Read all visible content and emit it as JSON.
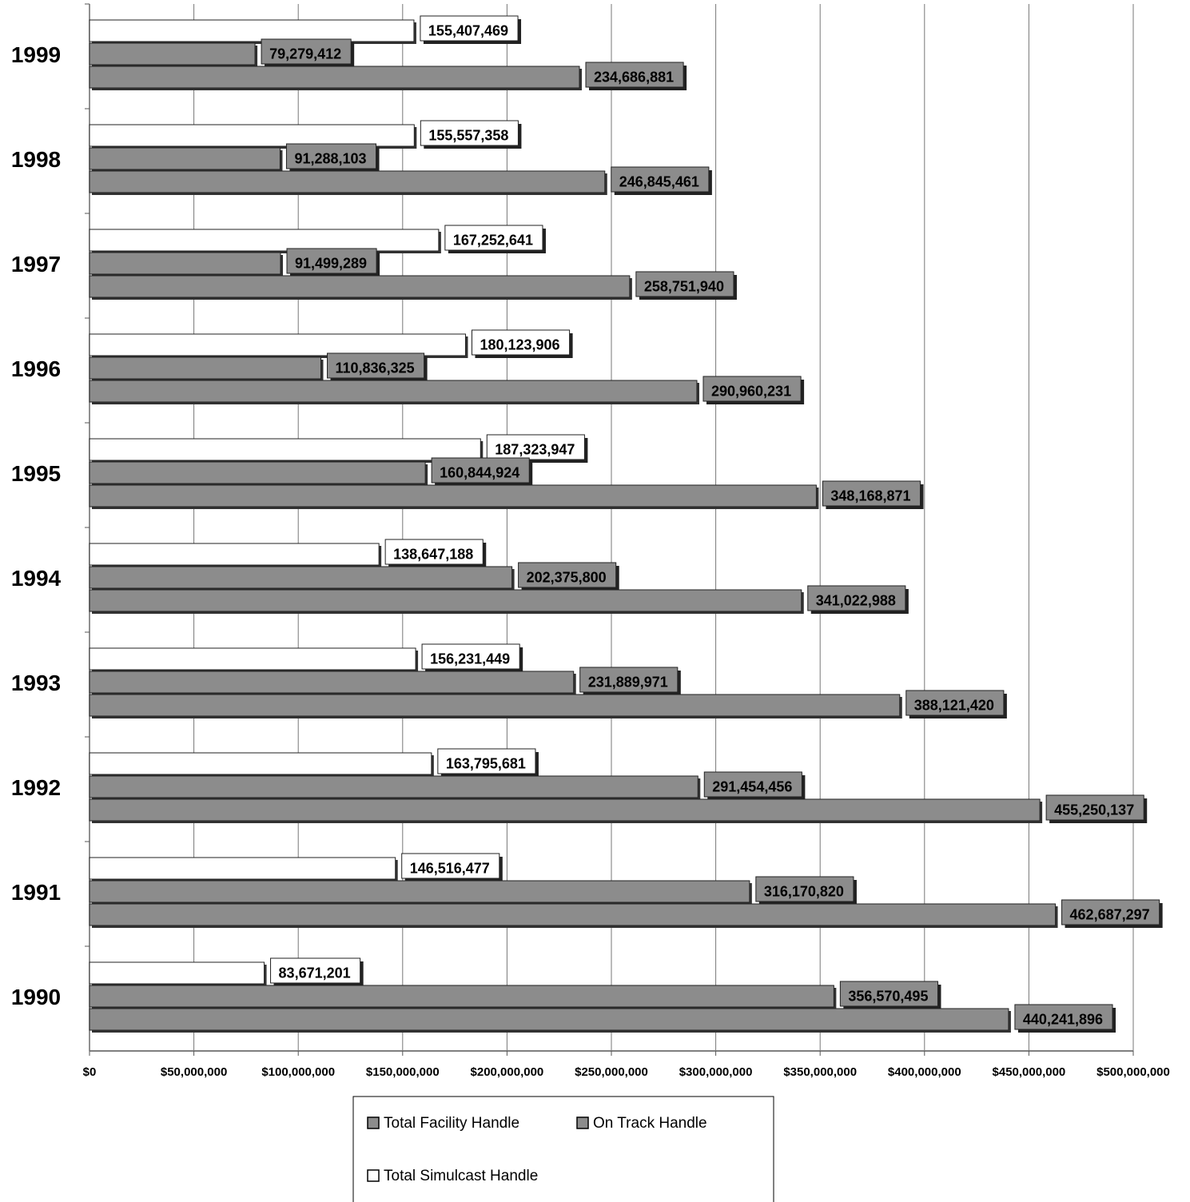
{
  "chart_data": {
    "type": "hbar",
    "categories": [
      "1999",
      "1998",
      "1997",
      "1996",
      "1995",
      "1994",
      "1993",
      "1992",
      "1991",
      "1990"
    ],
    "series": [
      {
        "name": "Total Facility Handle",
        "color": "#8c8c8c",
        "values": [
          234686881,
          246845461,
          258751940,
          290960231,
          348168871,
          341022988,
          388121420,
          455250137,
          462687297,
          440241896
        ],
        "value_labels": [
          "234,686,881",
          "246,845,461",
          "258,751,940",
          "290,960,231",
          "348,168,871",
          "341,022,988",
          "388,121,420",
          "455,250,137",
          "462,687,297",
          "440,241,896"
        ]
      },
      {
        "name": "On Track Handle",
        "color": "#8c8c8c",
        "values": [
          79279412,
          91288103,
          91499289,
          110836325,
          160844924,
          202375800,
          231889971,
          291454456,
          316170820,
          356570495
        ],
        "value_labels": [
          "79,279,412",
          "91,288,103",
          "91,499,289",
          "110,836,325",
          "160,844,924",
          "202,375,800",
          "231,889,971",
          "291,454,456",
          "316,170,820",
          "356,570,495"
        ]
      },
      {
        "name": "Total Simulcast Handle",
        "color": "#ffffff",
        "values": [
          155407469,
          155557358,
          167252641,
          180123906,
          187323947,
          138647188,
          156231449,
          163795681,
          146516477,
          83671201
        ],
        "value_labels": [
          "155,407,469",
          "155,557,358",
          "167,252,641",
          "180,123,906",
          "187,323,947",
          "138,647,188",
          "156,231,449",
          "163,795,681",
          "146,516,477",
          "83,671,201"
        ]
      }
    ],
    "xlim": [
      0,
      500000000
    ],
    "xticks": [
      {
        "value": 0,
        "label": "$0"
      },
      {
        "value": 50000000,
        "label": "$50,000,000"
      },
      {
        "value": 100000000,
        "label": "$100,000,000"
      },
      {
        "value": 150000000,
        "label": "$150,000,000"
      },
      {
        "value": 200000000,
        "label": "$200,000,000"
      },
      {
        "value": 250000000,
        "label": "$250,000,000"
      },
      {
        "value": 300000000,
        "label": "$300,000,000"
      },
      {
        "value": 350000000,
        "label": "$350,000,000"
      },
      {
        "value": 400000000,
        "label": "$400,000,000"
      },
      {
        "value": 450000000,
        "label": "$450,000,000"
      },
      {
        "value": 500000000,
        "label": "$500,000,000"
      }
    ],
    "grid": true
  }
}
